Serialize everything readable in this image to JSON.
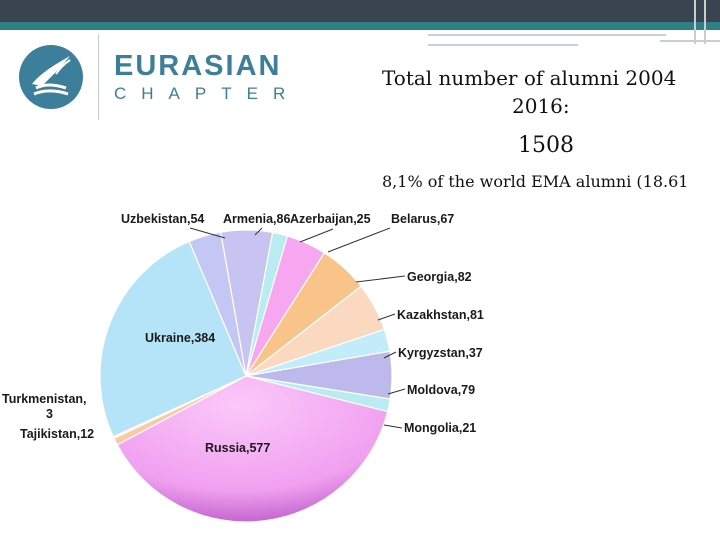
{
  "header": {
    "brand_title": "EURASIAN",
    "brand_sub": "CHAPTER",
    "colors": {
      "topbar": "#3a4450",
      "accent": "#2e7f86",
      "brand": "#3d7f9a"
    }
  },
  "icons": {
    "logo": "bird-wave-logo-icon"
  },
  "summary": {
    "line1": "Total number of alumni 2004",
    "line2": "2016:",
    "total": "1508",
    "share": "8,1% of the world EMA alumni (18.61"
  },
  "chart_data": {
    "type": "pie",
    "title": "",
    "slices": [
      {
        "label": "Armenia",
        "value": 86,
        "text": "Armenia,86",
        "color": "#c8c4f2"
      },
      {
        "label": "Azerbaijan",
        "value": 25,
        "text": "Azerbaijan,25",
        "color": "#b8ecf2"
      },
      {
        "label": "Belarus",
        "value": 67,
        "text": "Belarus,67",
        "color": "#f7a6f0"
      },
      {
        "label": "Georgia",
        "value": 82,
        "text": "Georgia,82",
        "color": "#f9c48a"
      },
      {
        "label": "Kazakhstan",
        "value": 81,
        "text": "Kazakhstan,81",
        "color": "#fbd8c0"
      },
      {
        "label": "Kyrgyzstan",
        "value": 37,
        "text": "Kyrgyzstan,37",
        "color": "#c2ecf9"
      },
      {
        "label": "Moldova",
        "value": 79,
        "text": "Moldova,79",
        "color": "#bdb9ec"
      },
      {
        "label": "Mongolia",
        "value": 21,
        "text": "Mongolia,21",
        "color": "#b8ecf2"
      },
      {
        "label": "Russia",
        "value": 577,
        "text": "Russia,577",
        "color": "#f4a7f4"
      },
      {
        "label": "Tajikistan",
        "value": 12,
        "text": "Tajikistan,12",
        "color": "#fbc8a8"
      },
      {
        "label": "Turkmenistan",
        "value": 3,
        "text": "Turkmenistan,3",
        "color": "#fddcc6"
      },
      {
        "label": "Ukraine",
        "value": 384,
        "text": "Ukraine,384",
        "color": "#b5e3f7"
      },
      {
        "label": "Uzbekistan",
        "value": 54,
        "text": "Uzbekistan,54",
        "color": "#c4c6f4"
      }
    ]
  }
}
